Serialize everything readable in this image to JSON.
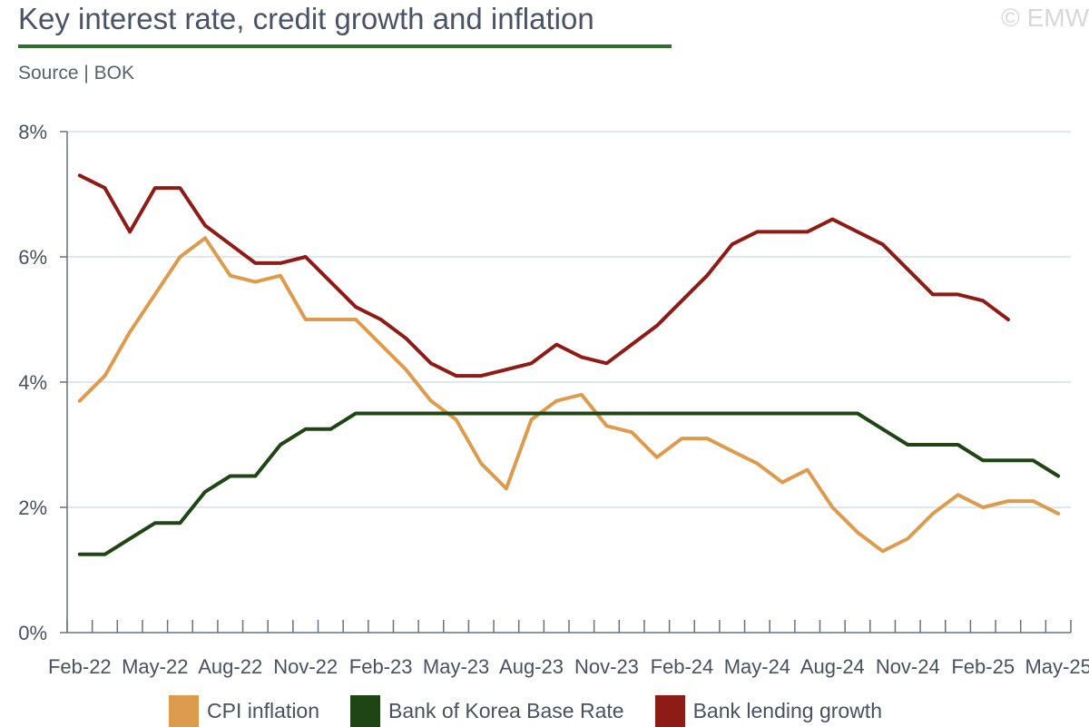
{
  "header": {
    "title": "Key interest rate, credit growth and inflation",
    "source": "Source | BOK",
    "copyright": "© EMW"
  },
  "colors": {
    "cpi": "#dd9b4e",
    "base_rate": "#1e4513",
    "lending": "#8e1c16",
    "grid": "#d4e1ea",
    "axis": "#6a7080",
    "title_rule": "#2f6d2c"
  },
  "chart_data": {
    "type": "line",
    "title": "Key interest rate, credit growth and inflation",
    "xlabel": "",
    "ylabel": "",
    "ylim": [
      0,
      8
    ],
    "yticks": [
      "0%",
      "2%",
      "4%",
      "6%",
      "8%"
    ],
    "grid": true,
    "legend": "bottom",
    "x": [
      "Feb-22",
      "Mar-22",
      "Apr-22",
      "May-22",
      "Jun-22",
      "Jul-22",
      "Aug-22",
      "Sep-22",
      "Oct-22",
      "Nov-22",
      "Dec-22",
      "Jan-23",
      "Feb-23",
      "Mar-23",
      "Apr-23",
      "May-23",
      "Jun-23",
      "Jul-23",
      "Aug-23",
      "Sep-23",
      "Oct-23",
      "Nov-23",
      "Dec-23",
      "Jan-24",
      "Feb-24",
      "Mar-24",
      "Apr-24",
      "May-24",
      "Jun-24",
      "Jul-24",
      "Aug-24",
      "Sep-24",
      "Oct-24",
      "Nov-24",
      "Dec-24",
      "Jan-25",
      "Feb-25",
      "Mar-25",
      "Apr-25",
      "May-25"
    ],
    "tick_labels": [
      "Feb-22",
      "May-22",
      "Aug-22",
      "Nov-22",
      "Feb-23",
      "May-23",
      "Aug-23",
      "Nov-23",
      "Feb-24",
      "May-24",
      "Aug-24",
      "Nov-24",
      "Feb-25",
      "May-25"
    ],
    "series": [
      {
        "name": "CPI inflation",
        "color": "#dd9b4e",
        "values": [
          3.7,
          4.1,
          4.8,
          5.4,
          6.0,
          6.3,
          5.7,
          5.6,
          5.7,
          5.0,
          5.0,
          5.0,
          4.6,
          4.2,
          3.7,
          3.4,
          2.7,
          2.3,
          3.4,
          3.7,
          3.8,
          3.3,
          3.2,
          2.8,
          3.1,
          3.1,
          2.9,
          2.7,
          2.4,
          2.6,
          2.0,
          1.6,
          1.3,
          1.5,
          1.9,
          2.2,
          2.0,
          2.1,
          2.1,
          1.9
        ]
      },
      {
        "name": "Bank of Korea Base Rate",
        "color": "#1e4513",
        "values": [
          1.25,
          1.25,
          1.5,
          1.75,
          1.75,
          2.25,
          2.5,
          2.5,
          3.0,
          3.25,
          3.25,
          3.5,
          3.5,
          3.5,
          3.5,
          3.5,
          3.5,
          3.5,
          3.5,
          3.5,
          3.5,
          3.5,
          3.5,
          3.5,
          3.5,
          3.5,
          3.5,
          3.5,
          3.5,
          3.5,
          3.5,
          3.5,
          3.25,
          3.0,
          3.0,
          3.0,
          2.75,
          2.75,
          2.75,
          2.5
        ]
      },
      {
        "name": "Bank lending growth",
        "color": "#8e1c16",
        "values": [
          7.3,
          7.1,
          6.4,
          7.1,
          7.1,
          6.5,
          6.2,
          5.9,
          5.9,
          6.0,
          5.6,
          5.2,
          5.0,
          4.7,
          4.3,
          4.1,
          4.1,
          4.2,
          4.3,
          4.6,
          4.4,
          4.3,
          4.6,
          4.9,
          5.3,
          5.7,
          6.2,
          6.4,
          6.4,
          6.4,
          6.6,
          6.4,
          6.2,
          5.8,
          5.4,
          5.4,
          5.3,
          5.0,
          null,
          null
        ]
      }
    ]
  }
}
